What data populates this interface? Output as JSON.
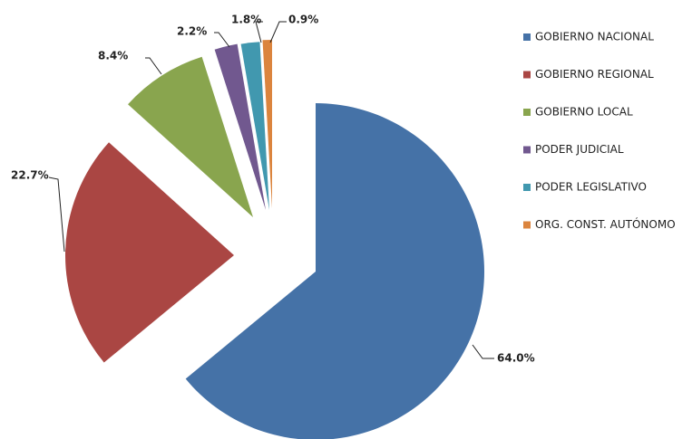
{
  "chart_data": {
    "type": "pie",
    "categories": [
      "GOBIERNO NACIONAL",
      "GOBIERNO REGIONAL",
      "GOBIERNO LOCAL",
      "PODER JUDICIAL",
      "PODER LEGISLATIVO",
      "ORG. CONST. AUTÓNOMO"
    ],
    "values": [
      64.0,
      22.7,
      8.4,
      2.2,
      1.8,
      0.9
    ],
    "value_labels": [
      "64.0%",
      "22.7%",
      "8.4%",
      "2.2%",
      "1.8%",
      "0.9%"
    ],
    "colors": [
      "#4572a7",
      "#aa4643",
      "#89a54e",
      "#71588f",
      "#4198af",
      "#db843d"
    ],
    "legend": "right"
  }
}
